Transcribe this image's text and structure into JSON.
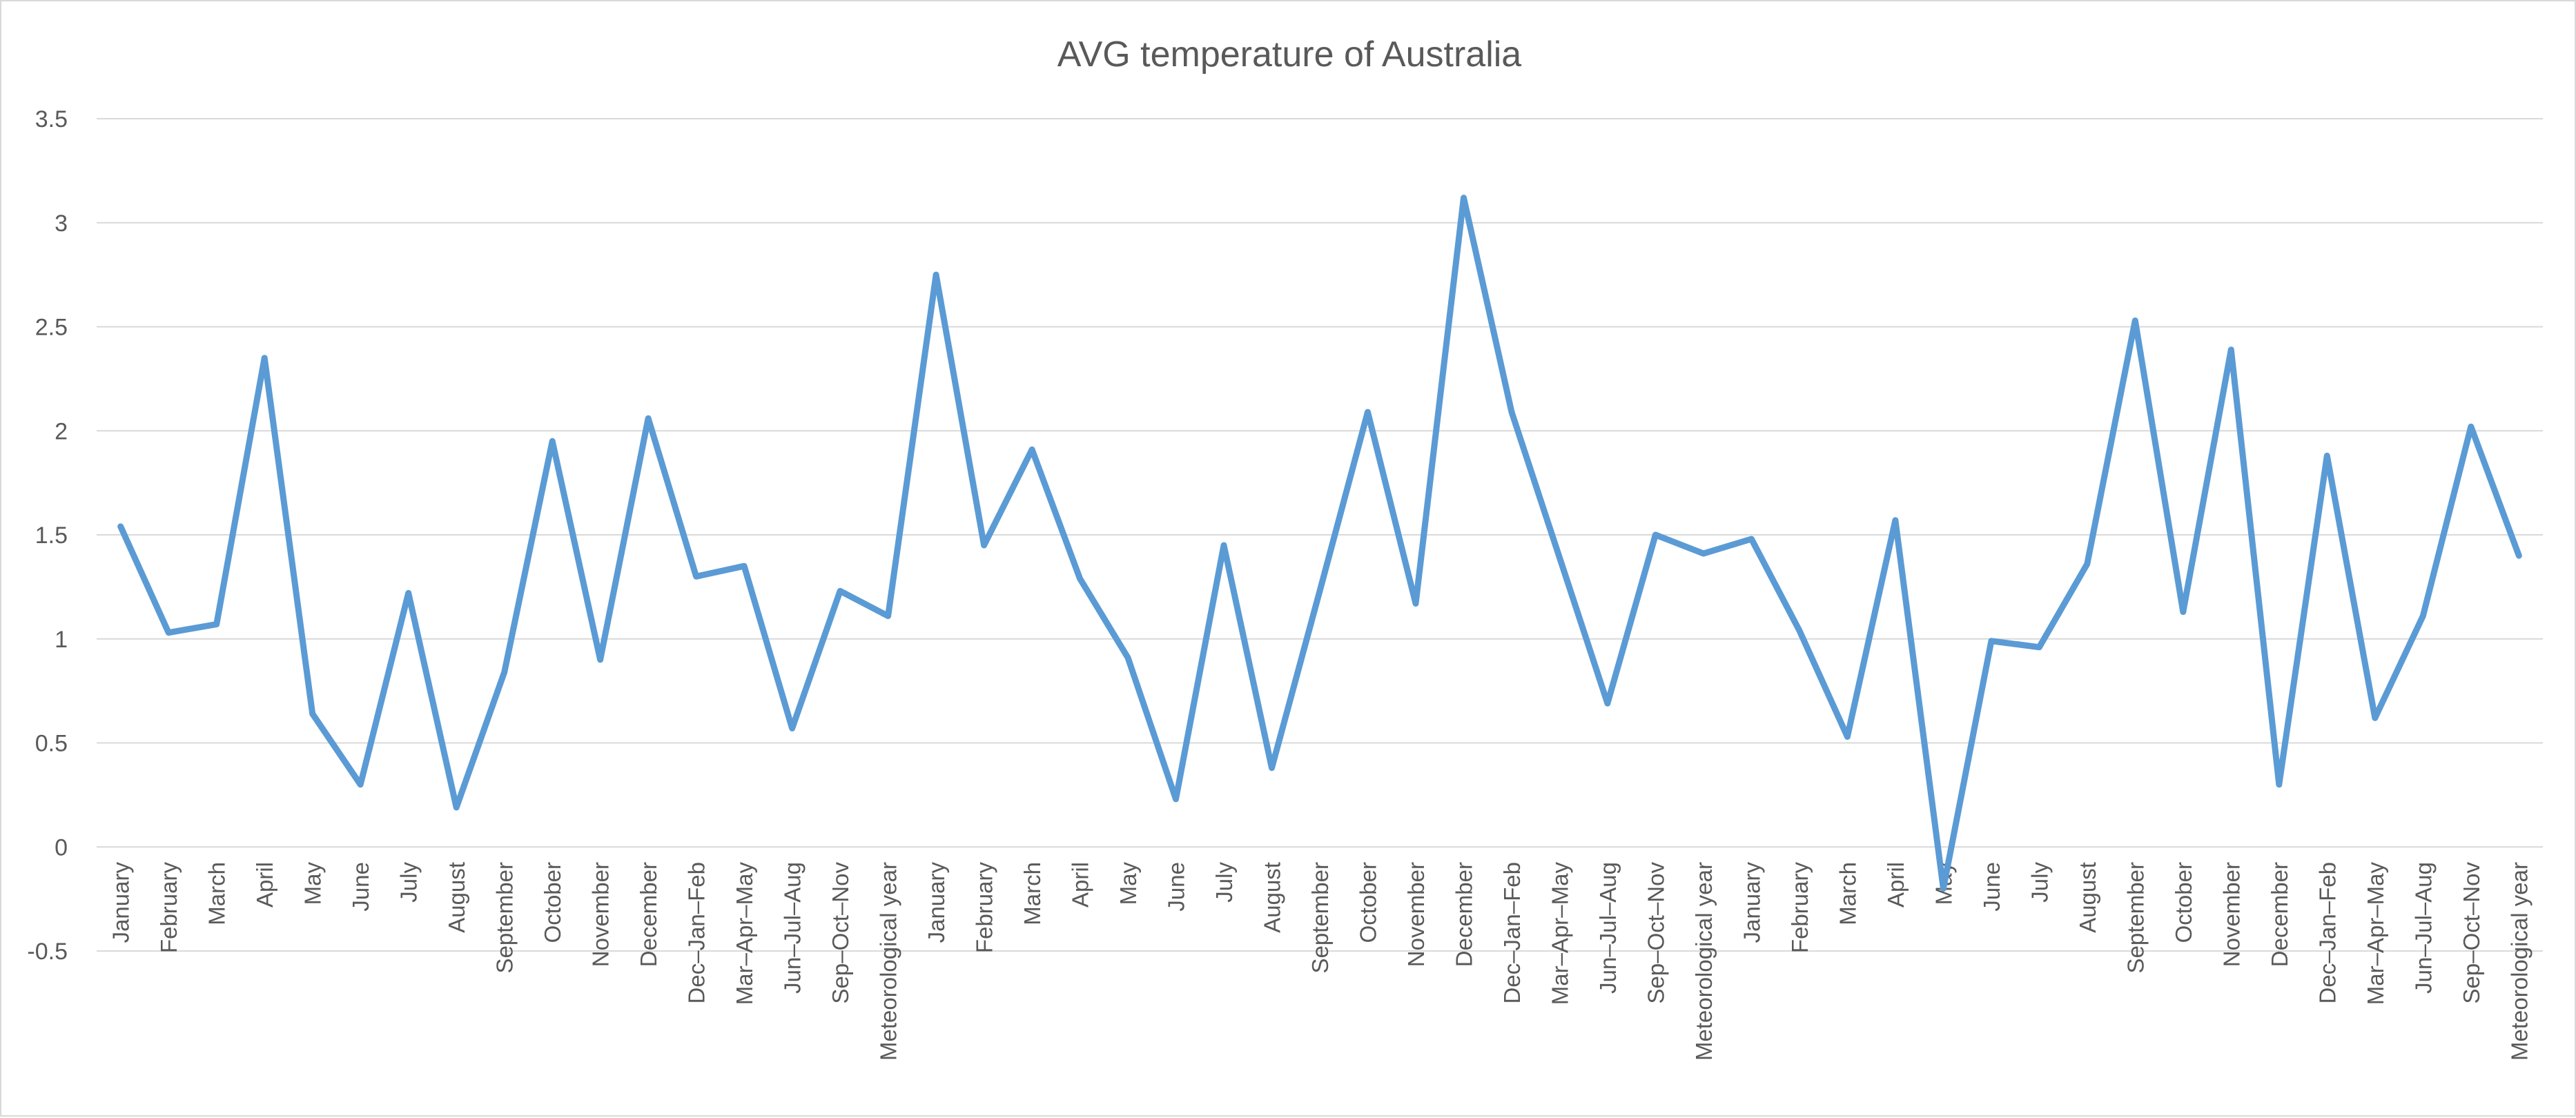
{
  "chart_data": {
    "type": "line",
    "title": "AVG temperature of Australia",
    "xlabel": "",
    "ylabel": "",
    "ylim": [
      -0.5,
      3.5
    ],
    "yticks": [
      -0.5,
      0,
      0.5,
      1,
      1.5,
      2,
      2.5,
      3,
      3.5
    ],
    "ytick_labels": [
      "-0.5",
      "0",
      "0.5",
      "1",
      "1.5",
      "2",
      "2.5",
      "3",
      "3.5"
    ],
    "grid": true,
    "legend": "none",
    "categories": [
      "January",
      "February",
      "March",
      "April",
      "May",
      "June",
      "July",
      "August",
      "September",
      "October",
      "November",
      "December",
      "Dec–Jan–Feb",
      "Mar–Apr–May",
      "Jun–Jul–Aug",
      "Sep–Oct–Nov",
      "Meteorological year",
      "January",
      "February",
      "March",
      "April",
      "May",
      "June",
      "July",
      "August",
      "September",
      "October",
      "November",
      "December",
      "Dec–Jan–Feb",
      "Mar–Apr–May",
      "Jun–Jul–Aug",
      "Sep–Oct–Nov",
      "Meteorological year",
      "January",
      "February",
      "March",
      "April",
      "May",
      "June",
      "July",
      "August",
      "September",
      "October",
      "November",
      "December",
      "Dec–Jan–Feb",
      "Mar–Apr–May",
      "Jun–Jul–Aug",
      "Sep–Oct–Nov",
      "Meteorological year"
    ],
    "series": [
      {
        "color": "#5b9bd5",
        "values": [
          1.54,
          1.03,
          1.07,
          2.35,
          0.64,
          0.3,
          1.22,
          0.19,
          0.84,
          1.95,
          0.9,
          2.06,
          1.3,
          1.35,
          0.57,
          1.23,
          1.11,
          2.75,
          1.45,
          1.91,
          1.29,
          0.91,
          0.23,
          1.45,
          0.38,
          1.23,
          2.09,
          1.17,
          3.12,
          2.09,
          1.39,
          0.69,
          1.5,
          1.41,
          1.48,
          1.04,
          0.53,
          1.57,
          -0.2,
          0.99,
          0.96,
          1.36,
          2.53,
          1.13,
          2.39,
          0.3,
          1.88,
          0.62,
          1.11,
          2.02,
          1.4
        ]
      }
    ]
  }
}
